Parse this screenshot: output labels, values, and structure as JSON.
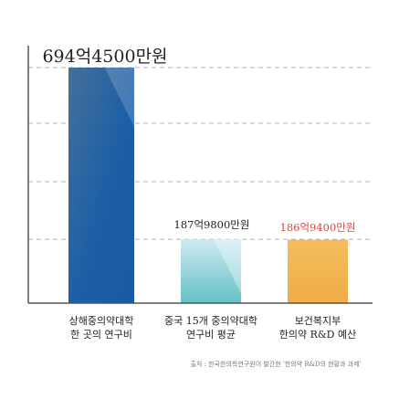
{
  "colors": {
    "background": "#ffffff",
    "axis": "#555555",
    "grid": "#9a9a9a",
    "bar1_top": "#3d6f9e",
    "bar1_bottom": "#1a5ea8",
    "bar2_top": "#bfe3ee",
    "bar2_bottom": "#6fc4c9",
    "bar3": "#f2b553",
    "label_dark": "#222222",
    "label_red": "#d9453f",
    "source": "#777777"
  },
  "chart_data": {
    "type": "bar",
    "categories": [
      [
        "상해중의약대학",
        "한 곳의 연구비"
      ],
      [
        "중국 15개 중의약대학",
        "연구비 평균"
      ],
      [
        "보건복지부",
        "한의약 R&D 예산"
      ]
    ],
    "values": [
      694.45,
      187.98,
      186.94
    ],
    "value_unit": "억원",
    "data_labels": [
      "694억4500만원",
      "187억9800만원",
      "186억9400만원"
    ],
    "gridlines": [
      694.45,
      187.98
    ],
    "ylim": [
      0,
      694.45
    ],
    "grid": true,
    "legend": "none"
  },
  "source": "출처 : 한국한의학연구원이 발간한 '한의약 R&D의 현황과 과제'"
}
